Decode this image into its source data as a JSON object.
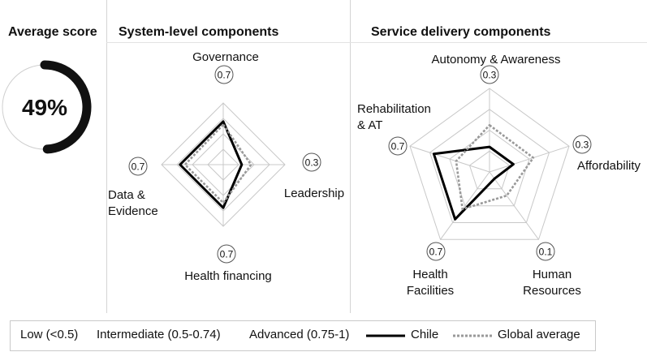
{
  "colors": {
    "chile": "#000000",
    "global": "#999999",
    "gauge": "#111111",
    "ring": "#cfcfcf",
    "grid": "#c8c8c8",
    "divider": "#d4d4d4"
  },
  "average": {
    "title": "Average score",
    "value": 49,
    "label": "49%"
  },
  "system": {
    "title": "System-level components"
  },
  "service": {
    "title": "Service delivery components"
  },
  "legend": {
    "low": "Low (<0.5)",
    "intermediate": "Intermediate (0.5-0.74)",
    "advanced": "Advanced (0.75-1)",
    "chile": "Chile",
    "global": "Global average"
  },
  "chart_data": [
    {
      "type": "radar",
      "title": "System-level components",
      "axes": [
        {
          "name": "Governance",
          "label_lines": [
            "Governance"
          ],
          "score_label": "0.7"
        },
        {
          "name": "Leadership",
          "label_lines": [
            "Leadership"
          ],
          "score_label": "0.3"
        },
        {
          "name": "Health financing",
          "label_lines": [
            "Health financing"
          ],
          "score_label": "0.7"
        },
        {
          "name": "Data & Evidence",
          "label_lines": [
            "Data &",
            "Evidence"
          ],
          "score_label": "0.7"
        }
      ],
      "series": [
        {
          "name": "Chile",
          "values": [
            0.7,
            0.3,
            0.7,
            0.7
          ]
        },
        {
          "name": "Global average",
          "values": [
            0.65,
            0.45,
            0.62,
            0.62
          ]
        }
      ],
      "range": [
        0,
        1
      ],
      "grid_levels": [
        0.25,
        0.5,
        0.75,
        1
      ]
    },
    {
      "type": "radar",
      "title": "Service delivery components",
      "axes": [
        {
          "name": "Autonomy & Awareness",
          "label_lines": [
            "Autonomy & Awareness"
          ],
          "score_label": "0.3"
        },
        {
          "name": "Affordability",
          "label_lines": [
            "Affordability"
          ],
          "score_label": "0.3"
        },
        {
          "name": "Human Resources",
          "label_lines": [
            "Human",
            "Resources"
          ],
          "score_label": "0.1"
        },
        {
          "name": "Health Facilities",
          "label_lines": [
            "Health",
            "Facilities"
          ],
          "score_label": "0.7"
        },
        {
          "name": "Rehabilitation & AT",
          "label_lines": [
            "Rehabilitation",
            "& AT"
          ],
          "score_label": "0.7"
        }
      ],
      "series": [
        {
          "name": "Chile",
          "values": [
            0.3,
            0.3,
            0.1,
            0.7,
            0.7
          ]
        },
        {
          "name": "Global average",
          "values": [
            0.56,
            0.55,
            0.35,
            0.55,
            0.42
          ]
        }
      ],
      "range": [
        0,
        1
      ],
      "grid_levels": [
        0.25,
        0.5,
        0.75,
        1
      ]
    }
  ]
}
